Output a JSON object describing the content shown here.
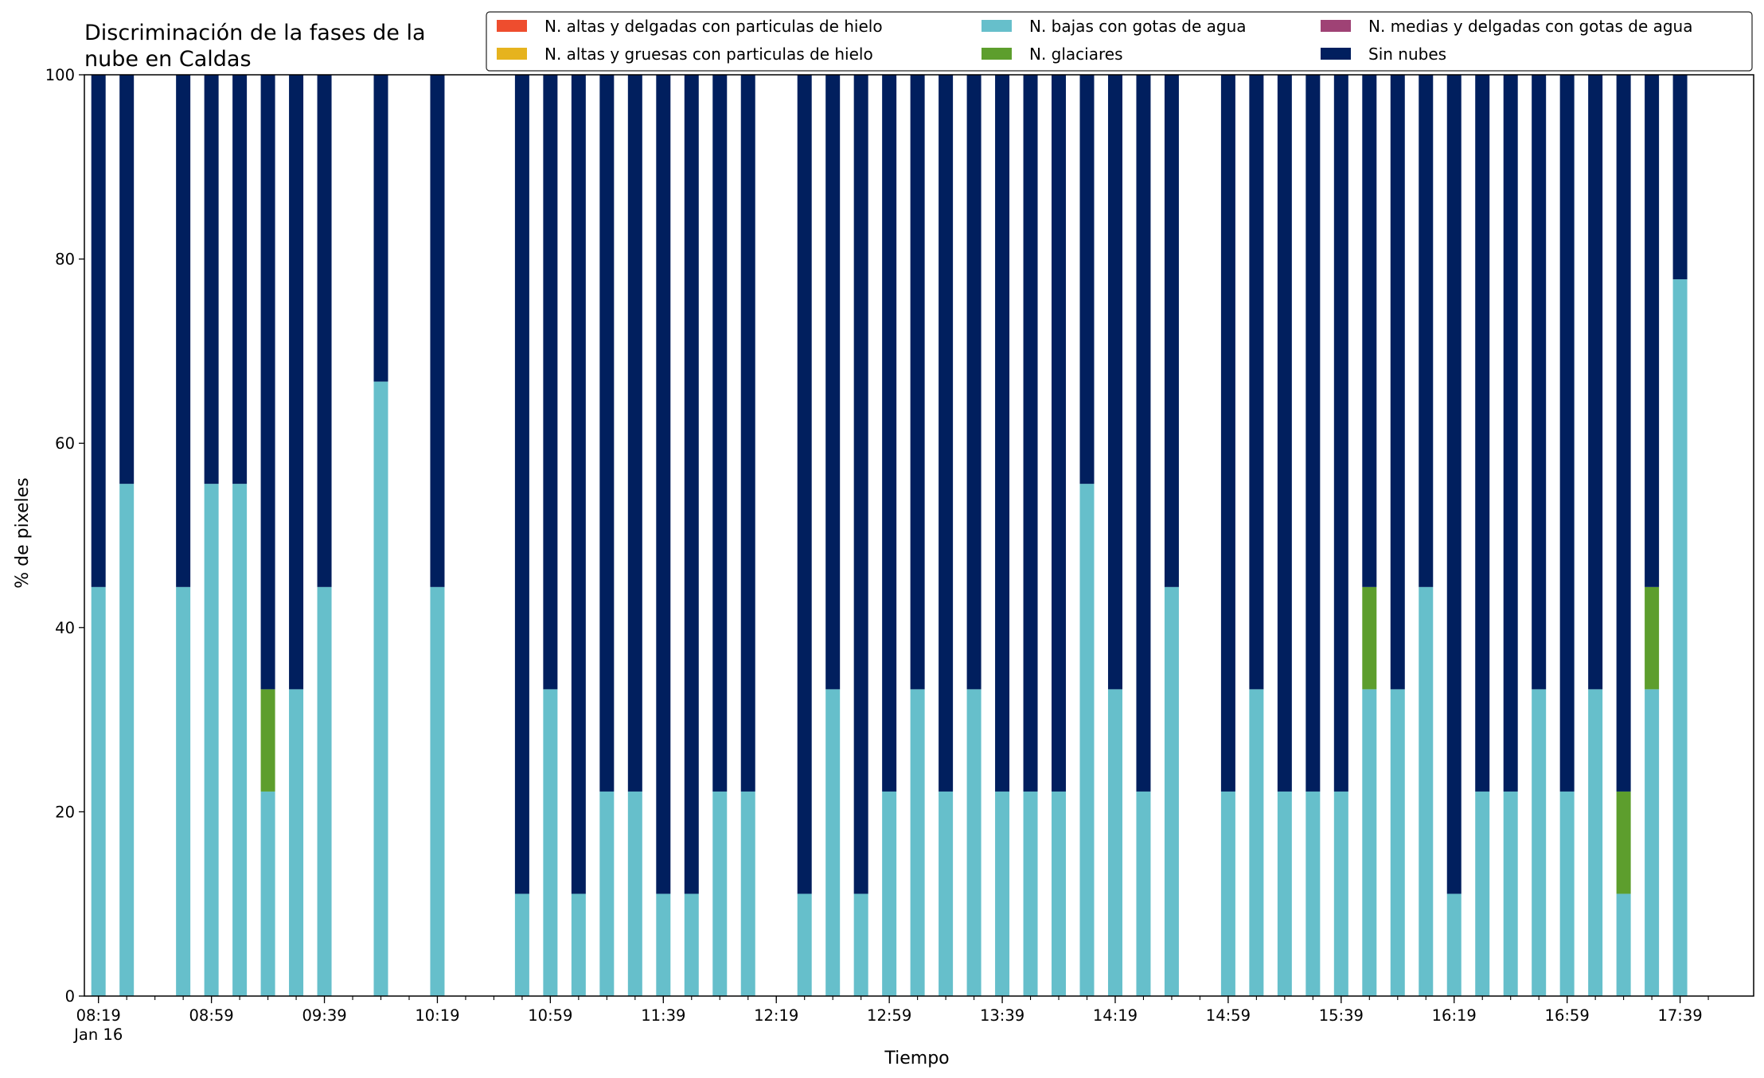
{
  "chart_data": {
    "type": "bar",
    "stacked": true,
    "title": "Discriminación de la fases de la nube en Caldas",
    "title_lines": [
      "Discriminación de la fases de la",
      "nube en Caldas"
    ],
    "xlabel": "Tiempo",
    "ylabel": "% de pixeles",
    "ylim": [
      0,
      100
    ],
    "yticks": [
      0,
      20,
      40,
      60,
      80,
      100
    ],
    "grid": false,
    "legend_position": "top-right",
    "x_start": "08:19",
    "x_step_minutes": 10,
    "n_slots": 58,
    "xtick_labels": [
      "08:19",
      "08:59",
      "09:39",
      "10:19",
      "10:59",
      "11:39",
      "12:19",
      "12:59",
      "13:39",
      "14:19",
      "14:59",
      "15:39",
      "16:19",
      "16:59",
      "17:39"
    ],
    "x_date_label": "Jan 16",
    "colors": {
      "altas_delgadas": "#ee4d2e",
      "altas_gruesas": "#e6b31e",
      "bajas": "#66bfcb",
      "glaciares": "#5d9e2d",
      "medias": "#9f4275",
      "sin_nubes": "#011f5e"
    },
    "legend": [
      {
        "key": "altas_delgadas",
        "label": "N. altas y delgadas con particulas de hielo"
      },
      {
        "key": "altas_gruesas",
        "label": "N. altas y gruesas con particulas de hielo"
      },
      {
        "key": "bajas",
        "label": "N. bajas con gotas de agua"
      },
      {
        "key": "glaciares",
        "label": "N. glaciares"
      },
      {
        "key": "medias",
        "label": "N. medias y delgadas con gotas de agua"
      },
      {
        "key": "sin_nubes",
        "label": "Sin nubes"
      }
    ],
    "stack_order": [
      "bajas",
      "glaciares",
      "sin_nubes"
    ],
    "bars": [
      {
        "time": "08:19",
        "bajas": 44.4,
        "glaciares": 0,
        "sin_nubes": 55.6
      },
      {
        "time": "08:29",
        "bajas": 55.6,
        "glaciares": 0,
        "sin_nubes": 44.4
      },
      {
        "time": "08:49",
        "bajas": 44.4,
        "glaciares": 0,
        "sin_nubes": 55.6
      },
      {
        "time": "08:59",
        "bajas": 55.6,
        "glaciares": 0,
        "sin_nubes": 44.4
      },
      {
        "time": "09:09",
        "bajas": 55.6,
        "glaciares": 0,
        "sin_nubes": 44.4
      },
      {
        "time": "09:19",
        "bajas": 22.2,
        "glaciares": 11.1,
        "sin_nubes": 66.7
      },
      {
        "time": "09:29",
        "bajas": 33.3,
        "glaciares": 0,
        "sin_nubes": 66.7
      },
      {
        "time": "09:39",
        "bajas": 44.4,
        "glaciares": 0,
        "sin_nubes": 55.6
      },
      {
        "time": "09:59",
        "bajas": 66.7,
        "glaciares": 0,
        "sin_nubes": 33.3
      },
      {
        "time": "10:19",
        "bajas": 44.4,
        "glaciares": 0,
        "sin_nubes": 55.6
      },
      {
        "time": "10:49",
        "bajas": 11.1,
        "glaciares": 0,
        "sin_nubes": 88.9
      },
      {
        "time": "10:59",
        "bajas": 33.3,
        "glaciares": 0,
        "sin_nubes": 66.7
      },
      {
        "time": "11:09",
        "bajas": 11.1,
        "glaciares": 0,
        "sin_nubes": 88.9
      },
      {
        "time": "11:19",
        "bajas": 22.2,
        "glaciares": 0,
        "sin_nubes": 77.8
      },
      {
        "time": "11:29",
        "bajas": 22.2,
        "glaciares": 0,
        "sin_nubes": 77.8
      },
      {
        "time": "11:39",
        "bajas": 11.1,
        "glaciares": 0,
        "sin_nubes": 88.9
      },
      {
        "time": "11:49",
        "bajas": 11.1,
        "glaciares": 0,
        "sin_nubes": 88.9
      },
      {
        "time": "11:59",
        "bajas": 22.2,
        "glaciares": 0,
        "sin_nubes": 77.8
      },
      {
        "time": "12:09",
        "bajas": 22.2,
        "glaciares": 0,
        "sin_nubes": 77.8
      },
      {
        "time": "12:29",
        "bajas": 11.1,
        "glaciares": 0,
        "sin_nubes": 88.9
      },
      {
        "time": "12:39",
        "bajas": 33.3,
        "glaciares": 0,
        "sin_nubes": 66.7
      },
      {
        "time": "12:49",
        "bajas": 11.1,
        "glaciares": 0,
        "sin_nubes": 88.9
      },
      {
        "time": "12:59",
        "bajas": 22.2,
        "glaciares": 0,
        "sin_nubes": 77.8
      },
      {
        "time": "13:09",
        "bajas": 33.3,
        "glaciares": 0,
        "sin_nubes": 66.7
      },
      {
        "time": "13:19",
        "bajas": 22.2,
        "glaciares": 0,
        "sin_nubes": 77.8
      },
      {
        "time": "13:29",
        "bajas": 33.3,
        "glaciares": 0,
        "sin_nubes": 66.7
      },
      {
        "time": "13:39",
        "bajas": 22.2,
        "glaciares": 0,
        "sin_nubes": 77.8
      },
      {
        "time": "13:49",
        "bajas": 22.2,
        "glaciares": 0,
        "sin_nubes": 77.8
      },
      {
        "time": "13:59",
        "bajas": 22.2,
        "glaciares": 0,
        "sin_nubes": 77.8
      },
      {
        "time": "14:09",
        "bajas": 55.6,
        "glaciares": 0,
        "sin_nubes": 44.4
      },
      {
        "time": "14:19",
        "bajas": 33.3,
        "glaciares": 0,
        "sin_nubes": 66.7
      },
      {
        "time": "14:29",
        "bajas": 22.2,
        "glaciares": 0,
        "sin_nubes": 77.8
      },
      {
        "time": "14:39",
        "bajas": 44.4,
        "glaciares": 0,
        "sin_nubes": 55.6
      },
      {
        "time": "14:59",
        "bajas": 22.2,
        "glaciares": 0,
        "sin_nubes": 77.8
      },
      {
        "time": "15:09",
        "bajas": 33.3,
        "glaciares": 0,
        "sin_nubes": 66.7
      },
      {
        "time": "15:19",
        "bajas": 22.2,
        "glaciares": 0,
        "sin_nubes": 77.8
      },
      {
        "time": "15:29",
        "bajas": 22.2,
        "glaciares": 0,
        "sin_nubes": 77.8
      },
      {
        "time": "15:39",
        "bajas": 22.2,
        "glaciares": 0,
        "sin_nubes": 77.8
      },
      {
        "time": "15:49",
        "bajas": 33.3,
        "glaciares": 11.1,
        "sin_nubes": 55.6
      },
      {
        "time": "15:59",
        "bajas": 33.3,
        "glaciares": 0,
        "sin_nubes": 66.7
      },
      {
        "time": "16:09",
        "bajas": 44.4,
        "glaciares": 0,
        "sin_nubes": 55.6
      },
      {
        "time": "16:19",
        "bajas": 11.1,
        "glaciares": 0,
        "sin_nubes": 88.9
      },
      {
        "time": "16:29",
        "bajas": 22.2,
        "glaciares": 0,
        "sin_nubes": 77.8
      },
      {
        "time": "16:39",
        "bajas": 22.2,
        "glaciares": 0,
        "sin_nubes": 77.8
      },
      {
        "time": "16:49",
        "bajas": 33.3,
        "glaciares": 0,
        "sin_nubes": 66.7
      },
      {
        "time": "16:59",
        "bajas": 22.2,
        "glaciares": 0,
        "sin_nubes": 77.8
      },
      {
        "time": "17:09",
        "bajas": 33.3,
        "glaciares": 0,
        "sin_nubes": 66.7
      },
      {
        "time": "17:19",
        "bajas": 11.1,
        "glaciares": 11.1,
        "sin_nubes": 77.8
      },
      {
        "time": "17:29",
        "bajas": 33.3,
        "glaciares": 11.1,
        "sin_nubes": 55.6
      },
      {
        "time": "17:39",
        "bajas": 77.8,
        "glaciares": 0,
        "sin_nubes": 22.2
      }
    ]
  }
}
